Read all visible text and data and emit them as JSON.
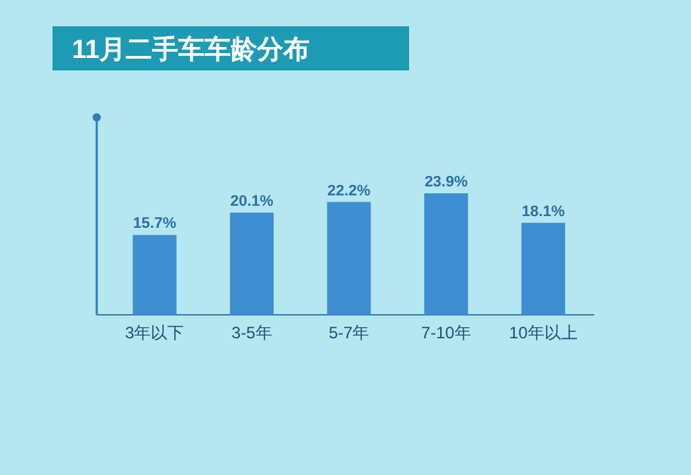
{
  "chart_data": {
    "type": "bar",
    "title": "11月二手车车龄分布",
    "categories": [
      "3年以下",
      "3-5年",
      "5-7年",
      "7-10年",
      "10年以上"
    ],
    "values": [
      15.7,
      20.1,
      22.2,
      23.9,
      18.1
    ],
    "value_labels": [
      "15.7%",
      "20.1%",
      "22.2%",
      "23.9%",
      "18.1%"
    ],
    "color": "#3d8fd1"
  }
}
